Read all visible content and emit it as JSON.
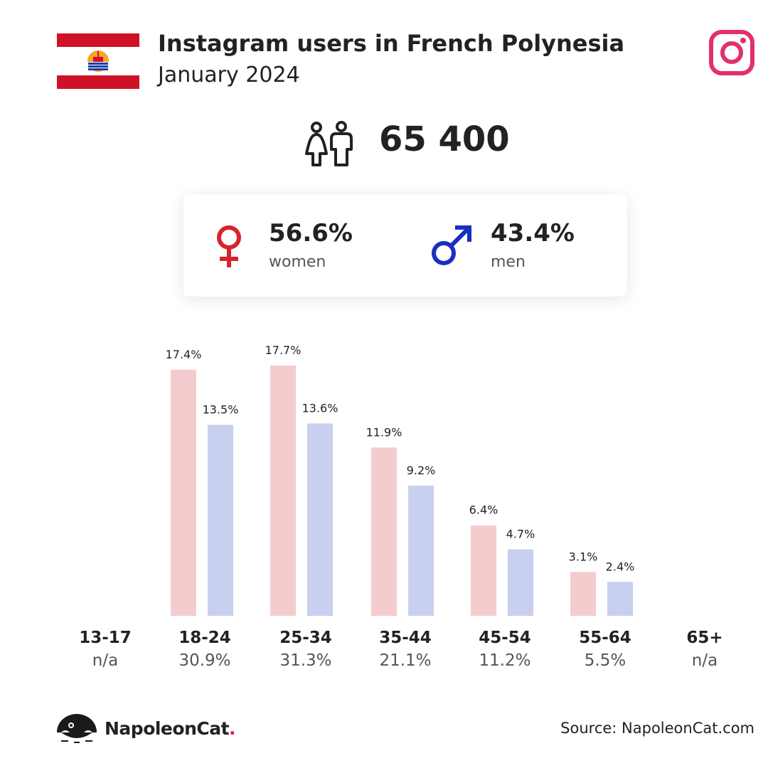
{
  "header": {
    "title": "Instagram users in French Polynesia",
    "subtitle": "January 2024"
  },
  "total_users": "65 400",
  "gender": {
    "women_pct": "56.6%",
    "women_label": "women",
    "men_pct": "43.4%",
    "men_label": "men"
  },
  "colors": {
    "women_bar": "#f5cccd",
    "men_bar": "#c8cfef",
    "women_symbol": "#d8232a",
    "men_symbol": "#1a2fbf",
    "instagram": "#e1306c"
  },
  "chart_data": {
    "type": "bar",
    "categories": [
      "13-17",
      "18-24",
      "25-34",
      "35-44",
      "45-54",
      "55-64",
      "65+"
    ],
    "category_totals": [
      "n/a",
      "30.9%",
      "31.3%",
      "21.1%",
      "11.2%",
      "5.5%",
      "n/a"
    ],
    "series": [
      {
        "name": "women",
        "values": [
          null,
          17.4,
          17.7,
          11.9,
          6.4,
          3.1,
          null
        ]
      },
      {
        "name": "men",
        "values": [
          null,
          13.5,
          13.6,
          9.2,
          4.7,
          2.4,
          null
        ]
      }
    ],
    "value_labels": [
      [
        null,
        "17.4%",
        "17.7%",
        "11.9%",
        "6.4%",
        "3.1%",
        null
      ],
      [
        null,
        "13.5%",
        "13.6%",
        "9.2%",
        "4.7%",
        "2.4%",
        null
      ]
    ],
    "ylim": [
      0,
      17.7
    ],
    "grid": false
  },
  "footer": {
    "brand_name": "NapoleonCat",
    "brand_dot": ".",
    "source": "Source: NapoleonCat.com"
  }
}
